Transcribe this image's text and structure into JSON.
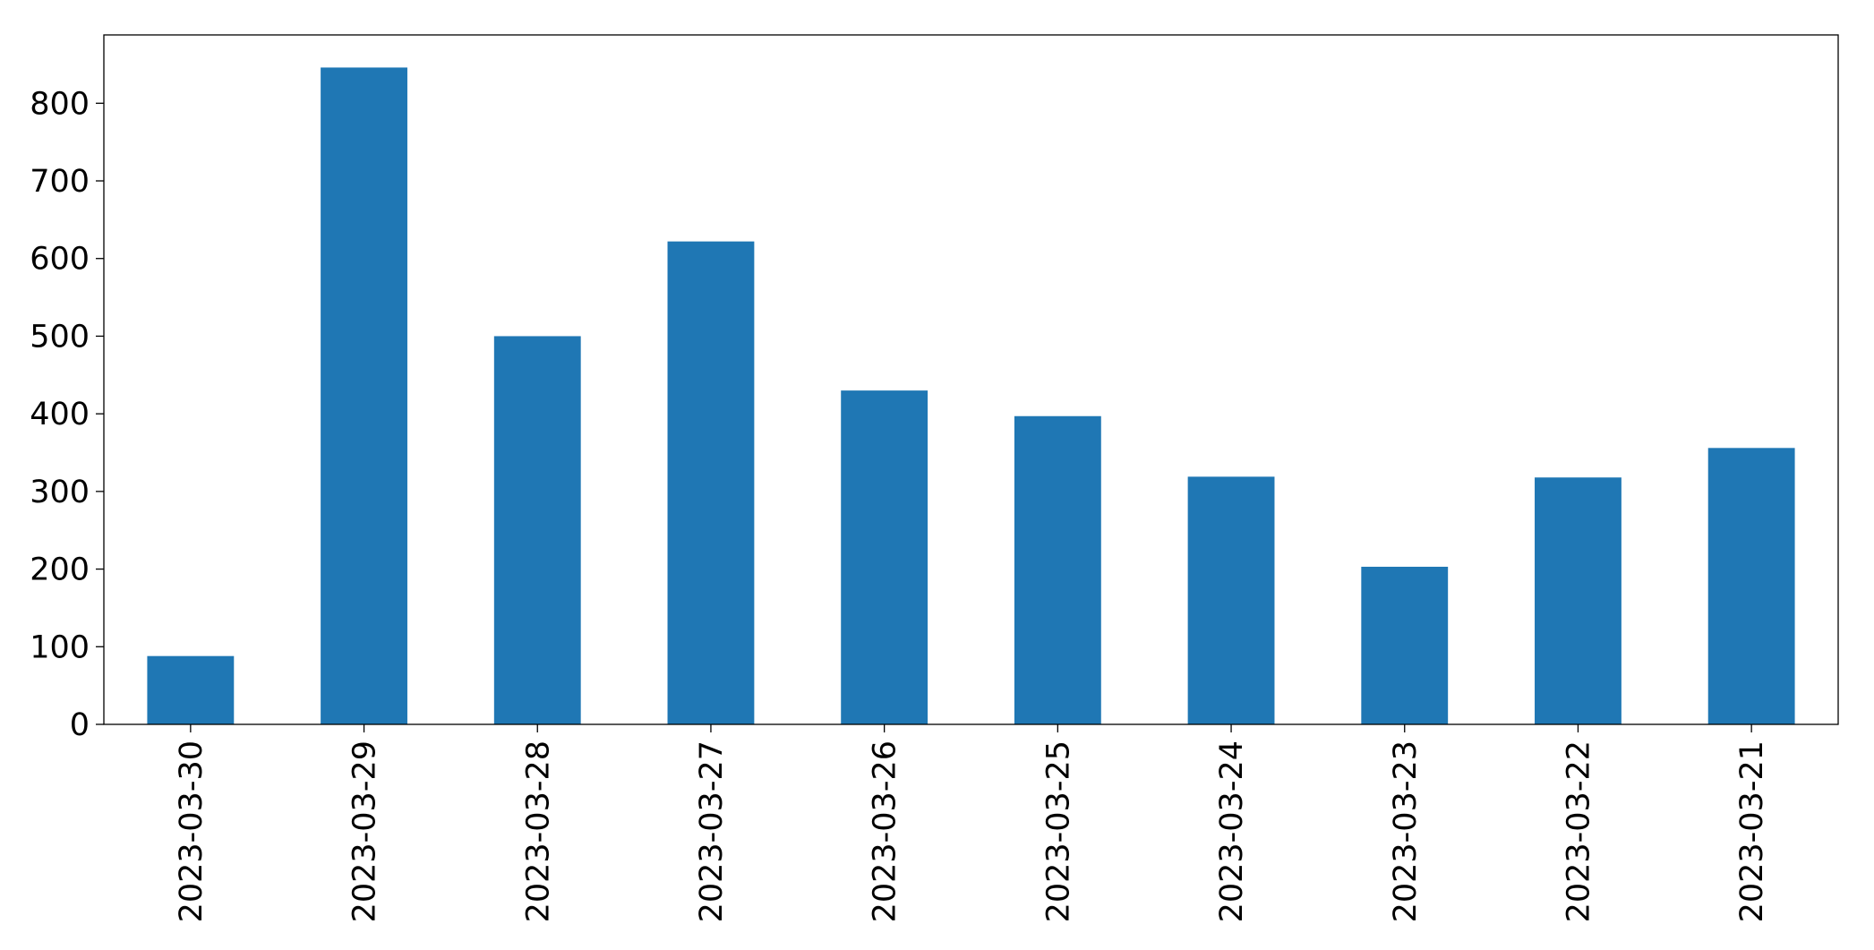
{
  "chart_data": {
    "type": "bar",
    "categories": [
      "2023-03-30",
      "2023-03-29",
      "2023-03-28",
      "2023-03-27",
      "2023-03-26",
      "2023-03-25",
      "2023-03-24",
      "2023-03-23",
      "2023-03-22",
      "2023-03-21"
    ],
    "values": [
      88,
      846,
      500,
      622,
      430,
      397,
      319,
      203,
      318,
      356
    ],
    "color": "#1f77b4",
    "ylim": [
      0,
      888
    ],
    "yticks": [
      0,
      100,
      200,
      300,
      400,
      500,
      600,
      700,
      800
    ],
    "grid": false
  }
}
